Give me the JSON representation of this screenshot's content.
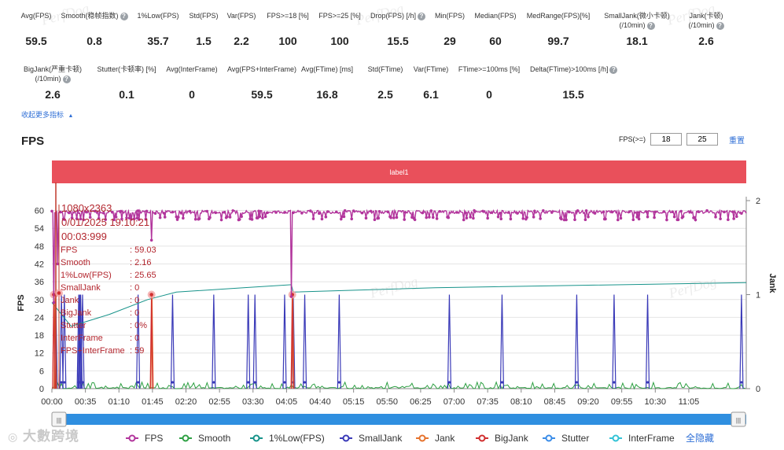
{
  "metrics_row1": [
    {
      "label": "Avg(FPS)",
      "value": "59.5",
      "help": false
    },
    {
      "label": "Smooth(稳帧指数)",
      "value": "0.8",
      "help": true
    },
    {
      "label": "1%Low(FPS)",
      "value": "35.7",
      "help": false
    },
    {
      "label": "Std(FPS)",
      "value": "1.5",
      "help": false
    },
    {
      "label": "Var(FPS)",
      "value": "2.2",
      "help": false
    },
    {
      "label": "FPS>=18 [%]",
      "value": "100",
      "help": false
    },
    {
      "label": "FPS>=25 [%]",
      "value": "100",
      "help": false
    },
    {
      "label": "Drop(FPS) [/h]",
      "value": "15.5",
      "help": true
    },
    {
      "label": "Min(FPS)",
      "value": "29",
      "help": false
    },
    {
      "label": "Median(FPS)",
      "value": "60",
      "help": false
    },
    {
      "label": "MedRange(FPS)[%]",
      "value": "99.7",
      "help": false
    },
    {
      "label": "SmallJank(微小卡顿)",
      "label2": "(/10min)",
      "value": "18.1",
      "help": true
    },
    {
      "label": "Jank(卡顿)",
      "label2": "(/10min)",
      "value": "2.6",
      "help": true
    }
  ],
  "metrics_row2": [
    {
      "label": "BigJank(严重卡顿)",
      "label2": "(/10min)",
      "value": "2.6",
      "help": true
    },
    {
      "label": "Stutter(卡顿率) [%]",
      "value": "0.1",
      "help": false
    },
    {
      "label": "Avg(InterFrame)",
      "value": "0",
      "help": false
    },
    {
      "label": "Avg(FPS+InterFrame)",
      "value": "59.5",
      "help": false
    },
    {
      "label": "Avg(FTime) [ms]",
      "value": "16.8",
      "help": false
    },
    {
      "label": "Std(FTime)",
      "value": "2.5",
      "help": false
    },
    {
      "label": "Var(FTime)",
      "value": "6.1",
      "help": false
    },
    {
      "label": "FTime>=100ms [%]",
      "value": "0",
      "help": false
    },
    {
      "label": "Delta(FTime)>100ms [/h]",
      "value": "15.5",
      "help": true
    }
  ],
  "collapse_label": "收起更多指标",
  "section_title": "FPS",
  "filter": {
    "label": "FPS(>=)",
    "value1": "18",
    "value2": "25",
    "reset_label": "重置"
  },
  "help_glyph": "?",
  "collapse_glyph": "▲",
  "watermark": "大數跨境",
  "watermark_faint": "PerfDog",
  "chart_data": {
    "type": "line",
    "label_band": "label1",
    "ylabel": "FPS",
    "y2label": "Jank",
    "ylim": [
      0,
      62
    ],
    "y2lim": [
      0,
      2
    ],
    "yticks": [
      0,
      6,
      12,
      18,
      24,
      30,
      36,
      42,
      48,
      54,
      60
    ],
    "y2ticks": [
      0,
      1,
      2
    ],
    "xlim": [
      0,
      725
    ],
    "xticks": [
      {
        "t": 0,
        "label": "00:00"
      },
      {
        "t": 35,
        "label": "00:35"
      },
      {
        "t": 70,
        "label": "01:10"
      },
      {
        "t": 105,
        "label": "01:45"
      },
      {
        "t": 140,
        "label": "02:20"
      },
      {
        "t": 175,
        "label": "02:55"
      },
      {
        "t": 210,
        "label": "03:30"
      },
      {
        "t": 245,
        "label": "04:05"
      },
      {
        "t": 280,
        "label": "04:40"
      },
      {
        "t": 315,
        "label": "05:15"
      },
      {
        "t": 350,
        "label": "05:50"
      },
      {
        "t": 385,
        "label": "06:25"
      },
      {
        "t": 420,
        "label": "07:00"
      },
      {
        "t": 455,
        "label": "07:35"
      },
      {
        "t": 490,
        "label": "08:10"
      },
      {
        "t": 525,
        "label": "08:45"
      },
      {
        "t": 560,
        "label": "09:20"
      },
      {
        "t": 595,
        "label": "09:55"
      },
      {
        "t": 630,
        "label": "10:30"
      },
      {
        "t": 665,
        "label": "11:05"
      }
    ],
    "series": [
      {
        "name": "FPS",
        "color": "#b2359c",
        "axis": "left",
        "baseline": 59.5,
        "dips": [
          {
            "t": 2,
            "v": 29
          },
          {
            "t": 6,
            "v": 42
          },
          {
            "t": 104,
            "v": 50
          },
          {
            "t": 250,
            "v": 31
          }
        ]
      },
      {
        "name": "Smooth",
        "color": "#2ea043",
        "axis": "left",
        "approx_range": [
          0,
          2
        ]
      },
      {
        "name": "1%Low(FPS)",
        "color": "#17938a",
        "axis": "left",
        "points": [
          [
            0,
            29
          ],
          [
            20,
            21
          ],
          [
            60,
            25
          ],
          [
            100,
            30
          ],
          [
            130,
            32.5
          ],
          [
            200,
            34
          ],
          [
            250,
            35
          ],
          [
            252,
            32.5
          ],
          [
            400,
            34
          ],
          [
            725,
            35.7
          ]
        ]
      },
      {
        "name": "SmallJank",
        "color": "#3a3ab8",
        "axis": "right",
        "spikes": [
          4,
          10,
          13,
          28,
          29,
          30,
          32,
          90,
          126,
          169,
          212,
          205,
          243,
          252,
          264,
          300,
          415,
          470,
          548,
          587,
          622,
          720
        ]
      },
      {
        "name": "Jank",
        "color": "#e6732e",
        "axis": "right",
        "spikes": [
          3,
          104,
          251
        ]
      },
      {
        "name": "BigJank",
        "color": "#d12f2f",
        "axis": "right",
        "spikes": [
          2,
          104,
          251
        ]
      },
      {
        "name": "Stutter",
        "color": "#3b8de8",
        "axis": "right"
      },
      {
        "name": "InterFrame",
        "color": "#33c3d6",
        "axis": "right"
      }
    ],
    "legend_all_hide": "全隐藏",
    "tooltip": {
      "resolution": "1080x2363",
      "date": "0/01/2025 19:10:21",
      "time": "00:03:999",
      "rows": [
        {
          "k": "FPS",
          "v": ": 59.03"
        },
        {
          "k": "Smooth",
          "v": ": 2.16"
        },
        {
          "k": "1%Low(FPS)",
          "v": ": 25.65"
        },
        {
          "k": "SmallJank",
          "v": ": 0"
        },
        {
          "k": "Jank",
          "v": ": 0"
        },
        {
          "k": "BigJank",
          "v": ": 0"
        },
        {
          "k": "Stutter",
          "v": ": 0%"
        },
        {
          "k": "InterFrame",
          "v": ": 0"
        },
        {
          "k": "FPS+InterFrame",
          "v": ": 59"
        }
      ]
    },
    "slider_handle_glyph": "|||"
  }
}
